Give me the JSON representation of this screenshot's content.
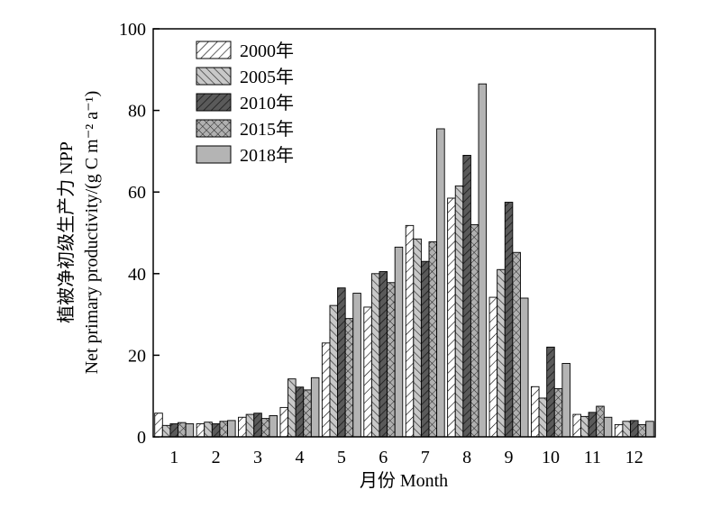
{
  "chart_data": {
    "type": "bar",
    "xlabel": "月份  Month",
    "ylabel_line1": "植被净初级生产力 NPP",
    "ylabel_line2": "Net primary productivity/(g C m⁻² a⁻¹)",
    "ylim": [
      0,
      100
    ],
    "yticks": [
      0,
      20,
      40,
      60,
      80,
      100
    ],
    "categories": [
      "1",
      "2",
      "3",
      "4",
      "5",
      "6",
      "7",
      "8",
      "9",
      "10",
      "11",
      "12"
    ],
    "legend_position": "top-left",
    "grid": false,
    "series": [
      {
        "name": "2000年",
        "pattern": "diag-light",
        "values": [
          5.8,
          3.2,
          4.8,
          7.2,
          23.0,
          31.8,
          51.8,
          58.5,
          34.2,
          12.3,
          5.5,
          3.0
        ]
      },
      {
        "name": "2005年",
        "pattern": "diag-gray",
        "values": [
          2.8,
          3.6,
          5.5,
          14.2,
          32.2,
          40.0,
          48.5,
          61.5,
          41.0,
          9.5,
          5.0,
          3.8
        ]
      },
      {
        "name": "2010年",
        "pattern": "diag-dark",
        "values": [
          3.2,
          3.2,
          5.8,
          12.2,
          36.5,
          40.5,
          43.0,
          69.0,
          57.5,
          22.0,
          6.0,
          4.0
        ]
      },
      {
        "name": "2015年",
        "pattern": "cross",
        "values": [
          3.5,
          3.8,
          4.5,
          11.5,
          29.0,
          37.8,
          47.8,
          52.0,
          45.2,
          11.8,
          7.5,
          3.0
        ]
      },
      {
        "name": "2018年",
        "pattern": "solid-gray",
        "values": [
          3.2,
          4.0,
          5.2,
          14.5,
          35.2,
          46.5,
          75.5,
          86.5,
          34.0,
          18.0,
          4.8,
          3.8
        ]
      }
    ]
  }
}
